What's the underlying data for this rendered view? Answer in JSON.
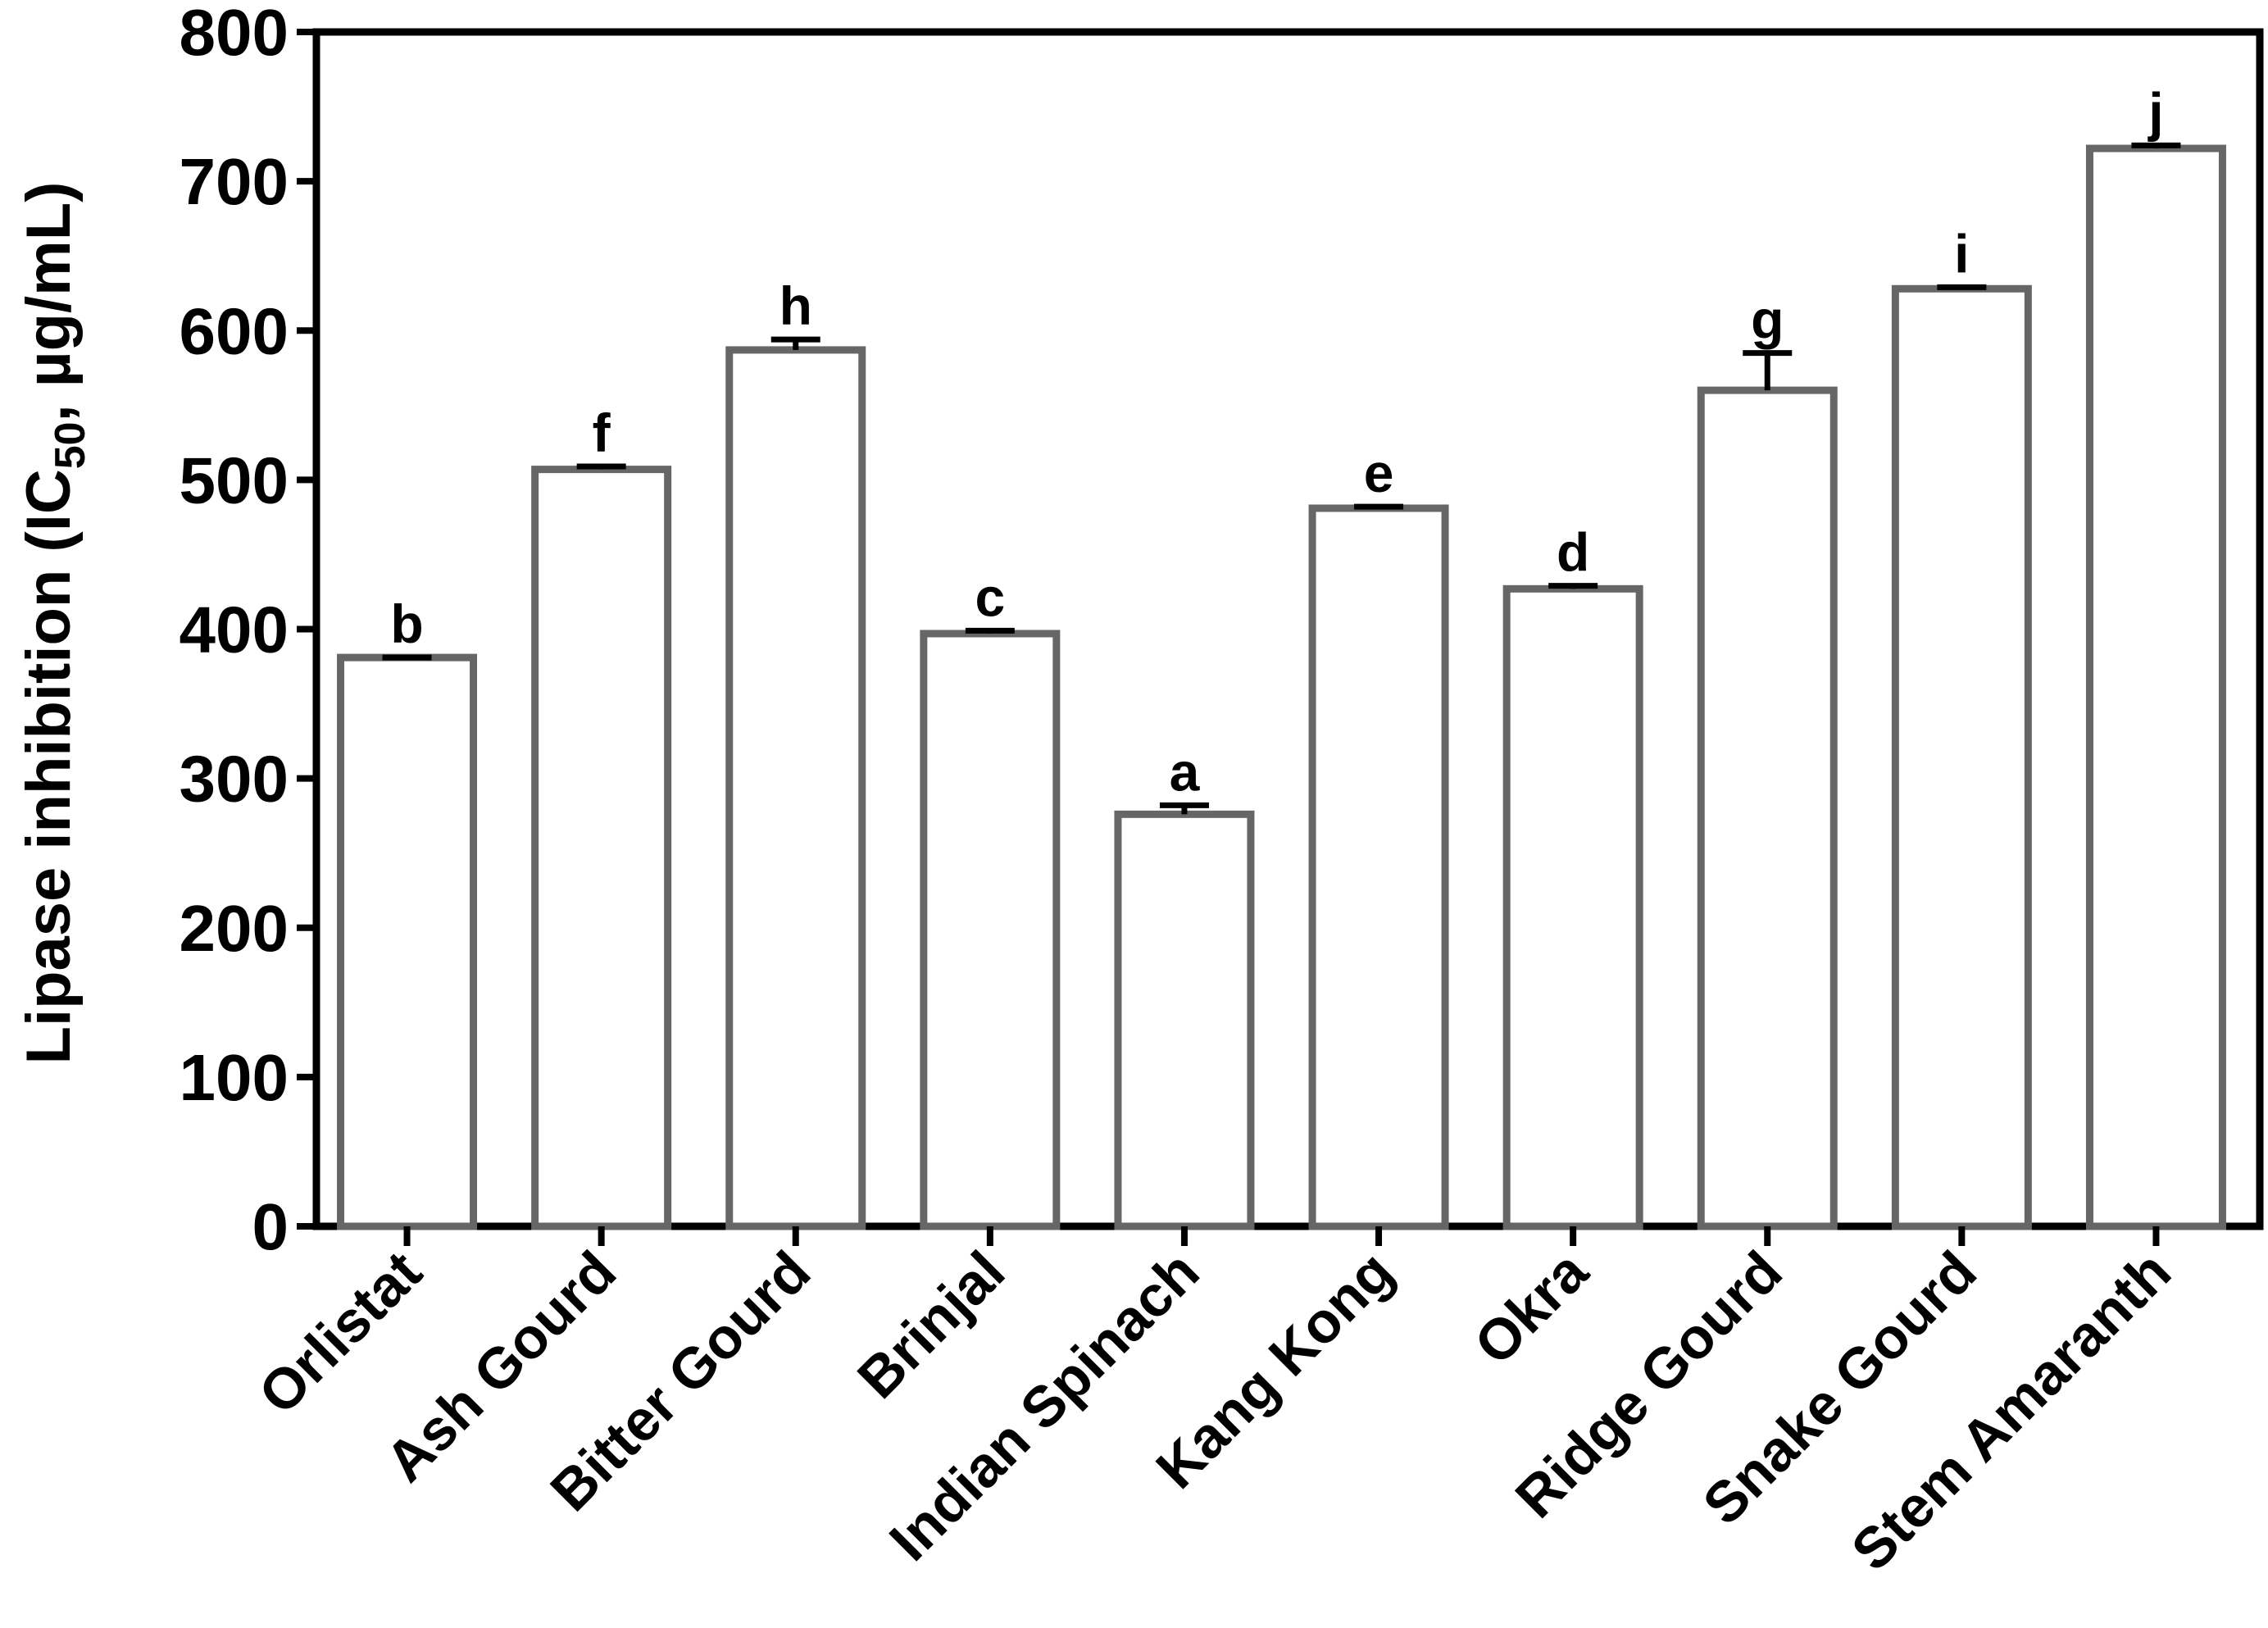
{
  "chart_data": {
    "type": "bar",
    "ylabel": [
      "Lipase inhibition (IC",
      "50",
      ", µg/mL)"
    ],
    "categories": [
      "Orlistat",
      "Ash Gourd",
      "Bitter Gourd",
      "Brinjal",
      "Indian Spinach",
      "Kang Kong",
      "Okra",
      "Ridge Gourd",
      "Snake Gourd",
      "Stem Amaranth"
    ],
    "values": [
      381,
      507,
      587,
      397,
      276,
      481,
      427,
      560,
      628,
      722
    ],
    "errors": [
      0,
      2,
      7,
      2,
      6,
      1,
      2,
      25,
      1,
      2
    ],
    "annotations": [
      "b",
      "f",
      "h",
      "c",
      "a",
      "e",
      "d",
      "g",
      "i",
      "j"
    ],
    "color": "#666666",
    "ylim": [
      0,
      800
    ],
    "yticks": [
      0,
      100,
      200,
      300,
      400,
      500,
      600,
      700,
      800
    ]
  }
}
